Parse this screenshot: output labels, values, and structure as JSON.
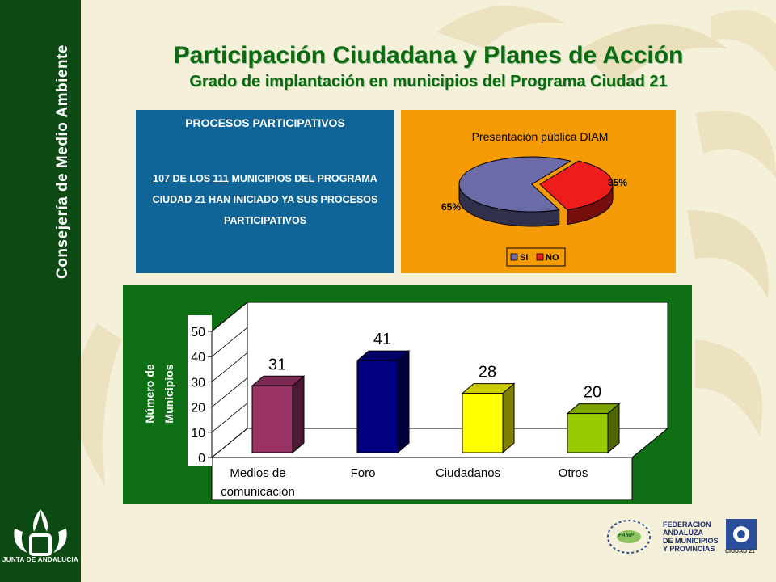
{
  "sidebar": {
    "organization": "Consejería de Medio Ambiente",
    "logo_label": "JUNTA DE ANDALUCIA"
  },
  "header": {
    "title": "Participación Ciudadana y Planes de Acción",
    "subtitle": "Grado de implantación en municipios del Programa Ciudad 21"
  },
  "info_box": {
    "heading": "PROCESOS PARTICIPATIVOS",
    "count_a": "107",
    "text_a": " DE LOS ",
    "count_b": "111",
    "text_b": " MUNICIPIOS DEL PROGRAMA CIUDAD 21 HAN INICIADO YA SUS PROCESOS PARTICIPATIVOS"
  },
  "footer_logos": {
    "federation": "FEDERACION\nANDALUZA\nDE MUNICIPIOS\nY PROVINCIAS",
    "federation_badge": "FAMP",
    "ciudad21": "CIUDAD 21"
  },
  "chart_data": [
    {
      "type": "pie",
      "title": "Presentación pública DIAM",
      "categories": [
        "SI",
        "NO"
      ],
      "values": [
        65,
        35
      ],
      "labels": [
        "65%",
        "35%"
      ],
      "colors": [
        "#6b6ba8",
        "#ee1c1c"
      ],
      "legend": "bottom",
      "background": "#f59b06"
    },
    {
      "type": "bar",
      "categories": [
        "Medios de comunicación",
        "Foro",
        "Ciudadanos",
        "Otros"
      ],
      "category_lines": [
        [
          "Medios de",
          "comunicación"
        ],
        [
          "Foro"
        ],
        [
          "Ciudadanos"
        ],
        [
          "Otros"
        ]
      ],
      "values": [
        31,
        41,
        28,
        20
      ],
      "value_labels": [
        "31",
        "41",
        "28",
        "20"
      ],
      "colors": [
        "#993366",
        "#000080",
        "#ffff00",
        "#99cc00"
      ],
      "ylabel": [
        "Número de",
        "Municipios"
      ],
      "yticks": [
        "0",
        "10",
        "20",
        "30",
        "40",
        "50"
      ],
      "ylim": [
        0,
        50
      ],
      "grid": false,
      "background": "#0d6e14",
      "plot_background": "#ffffff"
    }
  ]
}
